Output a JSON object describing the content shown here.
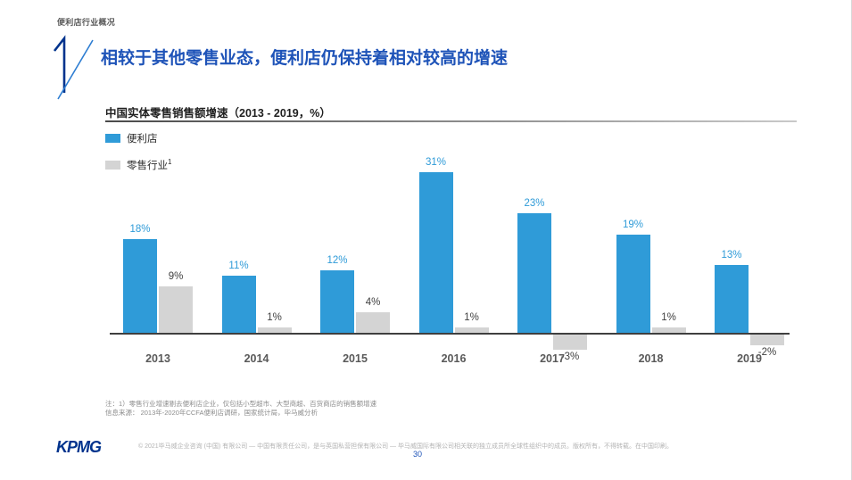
{
  "header": {
    "eyebrow": "便利店行业概况",
    "section_number": "1",
    "title": "相较于其他零售业态，便利店仍保持着相对较高的增速"
  },
  "chart": {
    "title": "中国实体零售销售额增速（2013 - 2019，%）",
    "legend": [
      {
        "label": "便利店",
        "color": "#2F9BD8"
      },
      {
        "label": "零售行业",
        "superscript": "1",
        "color": "#D4D4D4"
      }
    ]
  },
  "chart_data": {
    "type": "bar",
    "title": "中国实体零售销售额增速（2013 - 2019，%）",
    "unit": "%",
    "categories": [
      "2013",
      "2014",
      "2015",
      "2016",
      "2017",
      "2018",
      "2019"
    ],
    "series": [
      {
        "name": "便利店",
        "color": "#2F9BD8",
        "label_color": "#2F9BD8",
        "values": [
          18,
          11,
          12,
          31,
          23,
          19,
          13
        ]
      },
      {
        "name": "零售行业",
        "color": "#D4D4D4",
        "label_color": "#3F3F3F",
        "values": [
          9,
          1,
          4,
          1,
          -3,
          1,
          -2
        ]
      }
    ],
    "data_labels": [
      "18%",
      "11%",
      "12%",
      "31%",
      "23%",
      "19%",
      "13%",
      "9%",
      "1%",
      "4%",
      "1%",
      "-3%",
      "1%",
      "-2%"
    ],
    "ylim": [
      -4,
      33
    ],
    "grid": false,
    "legend_position": "top-left"
  },
  "notes": {
    "note1": "注：1）零售行业增速剔去便利店企业，仅包括小型超市、大型商超、百货商店的销售额增速",
    "source": "信息来源： 2013年-2020年CCFA便利店调研，国家统计局，毕马威分析"
  },
  "footer": {
    "logo": "KPMG",
    "copyright": "© 2021毕马威企业咨询 (中国) 有限公司 — 中国有限责任公司，是与英国私营担保有限公司 — 毕马威国际有限公司相关联的独立成员所全球性组织中的成员。版权所有，不得转载。在中国印刷。",
    "page_number": "30"
  }
}
